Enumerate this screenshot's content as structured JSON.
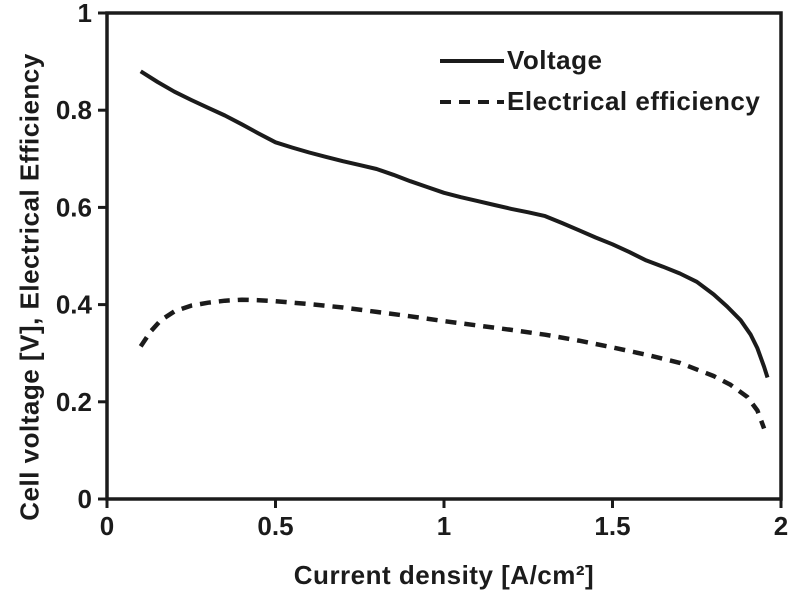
{
  "figure": {
    "background": "#ffffff",
    "ink_color": "#1b1b1b"
  },
  "chart_data": {
    "type": "line",
    "title": "",
    "xlabel": "Current density [A/cm²]",
    "ylabel": "Cell voltage [V], Electrical Efficiency",
    "xlim": [
      0,
      2
    ],
    "ylim": [
      0,
      1
    ],
    "grid": false,
    "legend_position": "upper-right-inside",
    "x_ticks": [
      {
        "value": 0,
        "label": "0"
      },
      {
        "value": 0.5,
        "label": "0.5"
      },
      {
        "value": 1,
        "label": "1"
      },
      {
        "value": 1.5,
        "label": "1.5"
      },
      {
        "value": 2,
        "label": "2"
      }
    ],
    "y_ticks": [
      {
        "value": 0,
        "label": "0"
      },
      {
        "value": 0.2,
        "label": "0.2"
      },
      {
        "value": 0.4,
        "label": "0.4"
      },
      {
        "value": 0.6,
        "label": "0.6"
      },
      {
        "value": 0.8,
        "label": "0.8"
      },
      {
        "value": 1,
        "label": "1"
      }
    ],
    "series": [
      {
        "name": "Voltage",
        "line_style": "solid",
        "color": "#1b1b1b",
        "points": [
          [
            0.1,
            0.88
          ],
          [
            0.15,
            0.858
          ],
          [
            0.2,
            0.838
          ],
          [
            0.25,
            0.821
          ],
          [
            0.3,
            0.805
          ],
          [
            0.35,
            0.789
          ],
          [
            0.4,
            0.771
          ],
          [
            0.45,
            0.752
          ],
          [
            0.5,
            0.734
          ],
          [
            0.55,
            0.723
          ],
          [
            0.6,
            0.713
          ],
          [
            0.65,
            0.704
          ],
          [
            0.7,
            0.695
          ],
          [
            0.75,
            0.687
          ],
          [
            0.8,
            0.679
          ],
          [
            0.85,
            0.667
          ],
          [
            0.9,
            0.654
          ],
          [
            0.95,
            0.642
          ],
          [
            1.0,
            0.63
          ],
          [
            1.05,
            0.621
          ],
          [
            1.1,
            0.613
          ],
          [
            1.15,
            0.605
          ],
          [
            1.2,
            0.597
          ],
          [
            1.25,
            0.59
          ],
          [
            1.3,
            0.582
          ],
          [
            1.35,
            0.568
          ],
          [
            1.4,
            0.553
          ],
          [
            1.45,
            0.538
          ],
          [
            1.5,
            0.524
          ],
          [
            1.55,
            0.508
          ],
          [
            1.6,
            0.491
          ],
          [
            1.65,
            0.478
          ],
          [
            1.7,
            0.464
          ],
          [
            1.75,
            0.447
          ],
          [
            1.8,
            0.421
          ],
          [
            1.84,
            0.396
          ],
          [
            1.88,
            0.368
          ],
          [
            1.91,
            0.338
          ],
          [
            1.93,
            0.31
          ],
          [
            1.95,
            0.272
          ],
          [
            1.96,
            0.25
          ]
        ]
      },
      {
        "name": "Electrical efficiency",
        "line_style": "dashed",
        "color": "#1b1b1b",
        "points": [
          [
            0.1,
            0.314
          ],
          [
            0.13,
            0.345
          ],
          [
            0.16,
            0.368
          ],
          [
            0.2,
            0.386
          ],
          [
            0.25,
            0.398
          ],
          [
            0.3,
            0.404
          ],
          [
            0.35,
            0.408
          ],
          [
            0.4,
            0.41
          ],
          [
            0.45,
            0.409
          ],
          [
            0.5,
            0.407
          ],
          [
            0.6,
            0.401
          ],
          [
            0.7,
            0.394
          ],
          [
            0.8,
            0.385
          ],
          [
            0.9,
            0.376
          ],
          [
            1.0,
            0.366
          ],
          [
            1.1,
            0.357
          ],
          [
            1.2,
            0.348
          ],
          [
            1.3,
            0.338
          ],
          [
            1.4,
            0.326
          ],
          [
            1.5,
            0.312
          ],
          [
            1.6,
            0.297
          ],
          [
            1.7,
            0.28
          ],
          [
            1.8,
            0.253
          ],
          [
            1.85,
            0.235
          ],
          [
            1.9,
            0.21
          ],
          [
            1.93,
            0.182
          ],
          [
            1.95,
            0.145
          ]
        ]
      }
    ]
  }
}
